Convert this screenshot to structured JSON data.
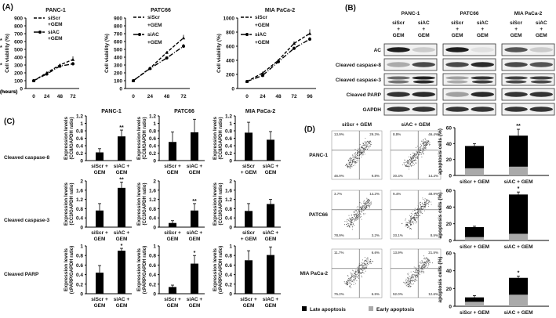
{
  "panels": {
    "A": "(A)",
    "B": "(B)",
    "C": "(C)",
    "D": "(D)"
  },
  "chart_data": [
    {
      "type": "line",
      "panel": "A",
      "title": "PANC-1",
      "xlabel": "(hours)",
      "ylabel": "Cell viability (%)",
      "x": [
        0,
        24,
        48,
        72
      ],
      "ylim": [
        0,
        900
      ],
      "yticks": [
        0,
        100,
        200,
        300,
        400,
        500,
        600,
        700,
        800,
        900
      ],
      "series": [
        {
          "name": "siScr +GEM",
          "legend": [
            "siScr",
            "+GEM"
          ],
          "values": [
            100,
            200,
            300,
            370
          ],
          "errors": [
            5,
            15,
            15,
            40
          ]
        },
        {
          "name": "siAC +GEM",
          "legend": [
            "siAC",
            "+GEM"
          ],
          "values": [
            100,
            185,
            285,
            315
          ],
          "errors": [
            5,
            12,
            15,
            25
          ]
        }
      ],
      "annotation": "*"
    },
    {
      "type": "line",
      "panel": "A",
      "title": "PATC66",
      "xlabel": "(hours)",
      "ylabel": "Cell viability (%)",
      "x": [
        0,
        24,
        48,
        72
      ],
      "ylim": [
        0,
        900
      ],
      "yticks": [
        0,
        100,
        200,
        300,
        400,
        500,
        600,
        700,
        800,
        900
      ],
      "series": [
        {
          "name": "siScr +GEM",
          "legend": [
            "siScr",
            "+GEM"
          ],
          "values": [
            100,
            260,
            460,
            645
          ],
          "errors": [
            5,
            10,
            15,
            40
          ]
        },
        {
          "name": "siAC +GEM",
          "legend": [
            "siAC",
            "+GEM"
          ],
          "values": [
            100,
            255,
            390,
            540
          ],
          "errors": [
            5,
            10,
            15,
            30
          ]
        }
      ],
      "annotation": "*"
    },
    {
      "type": "line",
      "panel": "A",
      "title": "MIA PaCa-2",
      "xlabel": "(hours)",
      "ylabel": "Cell viability (%)",
      "x": [
        0,
        24,
        48,
        72,
        96
      ],
      "ylim": [
        0,
        1000
      ],
      "yticks": [
        0,
        200,
        400,
        600,
        800,
        1000
      ],
      "series": [
        {
          "name": "siScr +GEM",
          "legend": [
            "siScr",
            "+GEM"
          ],
          "values": [
            100,
            220,
            400,
            640,
            780
          ],
          "errors": [
            5,
            20,
            15,
            30,
            60
          ]
        },
        {
          "name": "siAC +GEM",
          "legend": [
            "siAC",
            "+GEM"
          ],
          "values": [
            100,
            185,
            380,
            570,
            700
          ],
          "errors": [
            5,
            15,
            15,
            25,
            30
          ]
        }
      ],
      "annotation": "*"
    },
    {
      "type": "bar",
      "panel": "C",
      "row": "Cleaved caspase-8",
      "title": "PANC-1",
      "ylabel": [
        "Expression levels",
        "(CC8/GAPDH ratio)"
      ],
      "categories": [
        [
          "siScr +",
          "GEM"
        ],
        [
          "siAC +",
          "GEM"
        ]
      ],
      "values": [
        0.22,
        0.65
      ],
      "errors": [
        0.1,
        0.17
      ],
      "significance": [
        "",
        "**"
      ],
      "ylim": [
        0,
        1.2
      ],
      "yticks": [
        "0",
        "0.2",
        "0.4",
        "0.6",
        "0.8",
        "1",
        "1.2"
      ]
    },
    {
      "type": "bar",
      "panel": "C",
      "row": "Cleaved caspase-8",
      "title": "PATC66",
      "ylabel": [
        "Expression levels",
        "(CC8/GAPDH ratio)"
      ],
      "categories": [
        [
          "siScr +",
          "GEM"
        ],
        [
          "siAC +",
          "GEM"
        ]
      ],
      "values": [
        0.5,
        0.76
      ],
      "errors": [
        0.27,
        0.35
      ],
      "significance": [
        "",
        ""
      ],
      "ylim": [
        0,
        1.2
      ],
      "yticks": [
        "0",
        "0.2",
        "0.4",
        "0.6",
        "0.8",
        "1",
        "1.2"
      ]
    },
    {
      "type": "bar",
      "panel": "C",
      "row": "Cleaved caspase-8",
      "title": "MIA PaCa-2",
      "ylabel": [
        "Expression levels",
        "(CC8/GAPDH ratio)"
      ],
      "categories": [
        [
          "siScr",
          "+ GEM"
        ],
        [
          "siAC +",
          "GEM"
        ]
      ],
      "values": [
        0.75,
        0.56
      ],
      "errors": [
        0.28,
        0.22
      ],
      "significance": [
        "",
        ""
      ],
      "ylim": [
        0,
        1.2
      ],
      "yticks": [
        "0",
        "0.2",
        "0.4",
        "0.6",
        "0.8",
        "1",
        "1.2"
      ]
    },
    {
      "type": "bar",
      "panel": "C",
      "row": "Cleaved caspase-3",
      "title": "",
      "ylabel": [
        "Expression levels",
        "(CC3/GAPDH ratio)"
      ],
      "categories": [
        [
          "siScr +",
          "GEM"
        ],
        [
          "siAC +",
          "GEM"
        ]
      ],
      "values": [
        0.72,
        1.7
      ],
      "errors": [
        0.3,
        0.25
      ],
      "significance": [
        "",
        "**"
      ],
      "ylim": [
        0,
        2
      ],
      "yticks": [
        "0",
        "0.4",
        "0.8",
        "1.2",
        "1.6",
        "2"
      ]
    },
    {
      "type": "bar",
      "panel": "C",
      "row": "Cleaved caspase-3",
      "title": "",
      "ylabel": [
        "Expression levels",
        "(CC3/GAPDH ratio)"
      ],
      "categories": [
        [
          "siScr +",
          "GEM"
        ],
        [
          "siAC +",
          "GEM"
        ]
      ],
      "values": [
        0.18,
        0.72
      ],
      "errors": [
        0.1,
        0.3
      ],
      "significance": [
        "",
        "**"
      ],
      "ylim": [
        0,
        2
      ],
      "yticks": [
        "0",
        "0.4",
        "0.8",
        "1.2",
        "1.6",
        "2"
      ]
    },
    {
      "type": "bar",
      "panel": "C",
      "row": "Cleaved caspase-3",
      "title": "",
      "ylabel": [
        "Expression levels",
        "(CC3/GAPDH ratio)"
      ],
      "categories": [
        [
          "siScr",
          "+ GEM"
        ],
        [
          "siAC +",
          "GEM"
        ]
      ],
      "values": [
        0.7,
        1.0
      ],
      "errors": [
        0.32,
        0.2
      ],
      "significance": [
        "",
        ""
      ],
      "ylim": [
        0,
        2
      ],
      "yticks": [
        "0",
        "0.4",
        "0.8",
        "1.2",
        "1.6",
        "2"
      ]
    },
    {
      "type": "bar",
      "panel": "C",
      "row": "Cleaved PARP",
      "title": "",
      "ylabel": [
        "Expression levels",
        "(cPARP/GAPDH ratio)"
      ],
      "categories": [
        [
          "siScr +",
          "GEM"
        ],
        [
          "siAC +",
          "GEM"
        ]
      ],
      "values": [
        0.44,
        0.9
      ],
      "errors": [
        0.15,
        0.05
      ],
      "significance": [
        "",
        "*"
      ],
      "ylim": [
        0,
        1
      ],
      "yticks": [
        "0",
        "0.2",
        "0.4",
        "0.6",
        "0.8",
        "1"
      ]
    },
    {
      "type": "bar",
      "panel": "C",
      "row": "Cleaved PARP",
      "title": "",
      "ylabel": [
        "Expression levels",
        "(cPARP/GAPDH ratio)"
      ],
      "categories": [
        [
          "siScr +",
          "GEM"
        ],
        [
          "siAC +",
          "GEM"
        ]
      ],
      "values": [
        0.14,
        0.63
      ],
      "errors": [
        0.04,
        0.17
      ],
      "significance": [
        "",
        "*"
      ],
      "ylim": [
        0,
        1
      ],
      "yticks": [
        "0",
        "0.2",
        "0.4",
        "0.6",
        "0.8",
        "1"
      ]
    },
    {
      "type": "bar",
      "panel": "C",
      "row": "Cleaved PARP",
      "title": "",
      "ylabel": [
        "Expression levels",
        "(cPARP/GAPDH ratio)"
      ],
      "categories": [
        [
          "siScr +",
          "GEM"
        ],
        [
          "siAC +",
          "GEM"
        ]
      ],
      "values": [
        0.7,
        0.81
      ],
      "errors": [
        0.2,
        0.17
      ],
      "significance": [
        "",
        ""
      ],
      "ylim": [
        0,
        1
      ],
      "yticks": [
        "0",
        "0.2",
        "0.4",
        "0.6",
        "0.8",
        "1"
      ]
    },
    {
      "type": "bar",
      "stacked": true,
      "panel": "D",
      "row": "PANC-1",
      "ylabel": "apoptosis cells (%)",
      "categories": [
        "siScr + GEM",
        "siAC + GEM"
      ],
      "series": [
        {
          "name": "Early apoptosis",
          "values": [
            9,
            11
          ],
          "color": "#aaaaaa"
        },
        {
          "name": "Late apoptosis",
          "values": [
            28,
            39
          ],
          "color": "#000000"
        }
      ],
      "errors": [
        3,
        8
      ],
      "significance": [
        "",
        "**"
      ],
      "ylim": [
        0,
        60
      ],
      "yticks": [
        "0",
        "20",
        "40",
        "60"
      ]
    },
    {
      "type": "bar",
      "stacked": true,
      "panel": "D",
      "row": "PATC66",
      "ylabel": "apoptosis cells (%)",
      "categories": [
        "siScr + GEM",
        "siAC + GEM"
      ],
      "series": [
        {
          "name": "Early apoptosis",
          "values": [
            4,
            8
          ],
          "color": "#aaaaaa"
        },
        {
          "name": "Late apoptosis",
          "values": [
            12,
            47
          ],
          "color": "#000000"
        }
      ],
      "errors": [
        1,
        3
      ],
      "significance": [
        "",
        "*"
      ],
      "ylim": [
        0,
        60
      ],
      "yticks": [
        "0",
        "20",
        "40",
        "60"
      ]
    },
    {
      "type": "bar",
      "stacked": true,
      "panel": "D",
      "row": "MIA PaCa-2",
      "ylabel": "apoptosis cells (%)",
      "categories": [
        "siScr + GEM",
        "siAC + GEM"
      ],
      "series": [
        {
          "name": "Early apoptosis",
          "values": [
            5,
            13
          ],
          "color": "#aaaaaa"
        },
        {
          "name": "Late apoptosis",
          "values": [
            5,
            19
          ],
          "color": "#000000"
        }
      ],
      "errors": [
        2,
        2
      ],
      "significance": [
        "",
        "*"
      ],
      "ylim": [
        0,
        60
      ],
      "yticks": [
        "0",
        "20",
        "40",
        "60"
      ]
    }
  ],
  "blots": {
    "cell_lines": [
      "PANC-1",
      "PATC66",
      "MIA PaCa-2"
    ],
    "lanes": [
      [
        "siScr",
        "+",
        "GEM"
      ],
      [
        "siAC",
        "+",
        "GEM"
      ]
    ],
    "rows": [
      "AC",
      "Cleaved caspase-8",
      "Cleaved caspase-3",
      "Cleaved PARP",
      "GAPDH"
    ]
  },
  "flow": {
    "columns": [
      "siScr + GEM",
      "siAC + GEM"
    ],
    "rows": [
      {
        "label": "PANC-1",
        "plots": [
          [
            "13.9%",
            "29.3%",
            "46.9%",
            "9.8%"
          ],
          [
            "8.8%",
            "46.4%",
            "30.4%",
            "14.4%"
          ]
        ]
      },
      {
        "label": "PATC66",
        "plots": [
          [
            "3.7%",
            "14.2%",
            "78.9%",
            "3.2%"
          ],
          [
            "9.4%",
            "48.9%",
            "33.1%",
            "8.5%"
          ]
        ]
      },
      {
        "label": "MIA PaCa-2",
        "plots": [
          [
            "11.7%",
            "6.6%",
            "75.2%",
            "6.5%"
          ],
          [
            "13.9%",
            "21.5%",
            "52.0%",
            "12.6%"
          ]
        ]
      }
    ],
    "legend": [
      {
        "label": "Late apoptosis",
        "color": "#000000"
      },
      {
        "label": "Early apoptosis",
        "color": "#aaaaaa"
      }
    ]
  },
  "row_labels_C": [
    "Cleaved caspase-8",
    "Cleaved caspase-3",
    "Cleaved PARP"
  ]
}
